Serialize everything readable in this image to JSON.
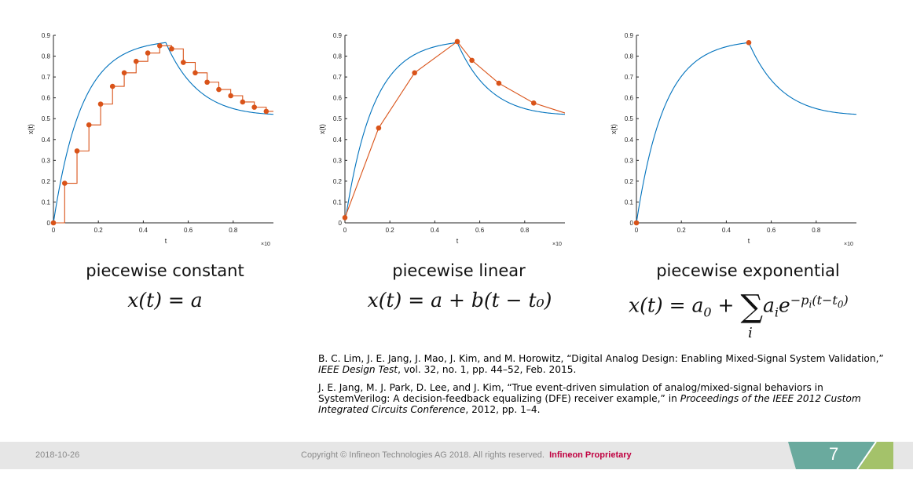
{
  "chart_data": [
    {
      "type": "line",
      "title": "",
      "xlabel": "t",
      "ylabel": "x(t)",
      "x_exponent_label": "×10",
      "x_exponent": "-6",
      "xlim": [
        0,
        1
      ],
      "ylim": [
        0,
        0.9
      ],
      "xticks": [
        "0",
        "0.2",
        "0.4",
        "0.6",
        "0.8",
        "1"
      ],
      "yticks": [
        "0",
        "0.1",
        "0.2",
        "0.3",
        "0.4",
        "0.5",
        "0.6",
        "0.7",
        "0.8",
        "0.9"
      ],
      "series": [
        {
          "kind": "smooth",
          "color": "#0072BD"
        },
        {
          "kind": "staircase",
          "color": "#D95319"
        },
        {
          "kind": "markers",
          "color": "#D95319"
        }
      ],
      "points_x": [
        0,
        0.05,
        0.105,
        0.158,
        0.21,
        0.263,
        0.315,
        0.368,
        0.42,
        0.473,
        0.526,
        0.578,
        0.631,
        0.684,
        0.736,
        0.789,
        0.842,
        0.894,
        0.947,
        1.0
      ],
      "points_y": [
        0,
        0.19,
        0.345,
        0.47,
        0.57,
        0.655,
        0.72,
        0.775,
        0.815,
        0.85,
        0.835,
        0.77,
        0.72,
        0.675,
        0.64,
        0.61,
        0.58,
        0.555,
        0.535,
        0.52
      ],
      "peak": [
        0.5,
        0.865
      ],
      "end": [
        1.0,
        0.52
      ]
    },
    {
      "type": "line",
      "title": "",
      "xlabel": "t",
      "ylabel": "x(t)",
      "x_exponent_label": "×10",
      "x_exponent": "-6",
      "xlim": [
        0,
        1
      ],
      "ylim": [
        0,
        0.9
      ],
      "xticks": [
        "0",
        "0.2",
        "0.4",
        "0.6",
        "0.8",
        "1"
      ],
      "yticks": [
        "0",
        "0.1",
        "0.2",
        "0.3",
        "0.4",
        "0.5",
        "0.6",
        "0.7",
        "0.8",
        "0.9"
      ],
      "series": [
        {
          "kind": "smooth",
          "color": "#0072BD"
        },
        {
          "kind": "polyline",
          "color": "#D95319"
        },
        {
          "kind": "markers",
          "color": "#D95319"
        }
      ],
      "points_x": [
        0,
        0.15,
        0.31,
        0.5,
        0.565,
        0.685,
        0.84,
        1.0
      ],
      "points_y": [
        0.025,
        0.455,
        0.72,
        0.87,
        0.78,
        0.67,
        0.575,
        0.52
      ],
      "peak": [
        0.5,
        0.865
      ],
      "end": [
        1.0,
        0.52
      ]
    },
    {
      "type": "line",
      "title": "",
      "xlabel": "t",
      "ylabel": "x(t)",
      "x_exponent_label": "×10",
      "x_exponent": "-6",
      "xlim": [
        0,
        1
      ],
      "ylim": [
        0,
        0.9
      ],
      "xticks": [
        "0",
        "0.2",
        "0.4",
        "0.6",
        "0.8",
        "1"
      ],
      "yticks": [
        "0",
        "0.1",
        "0.2",
        "0.3",
        "0.4",
        "0.5",
        "0.6",
        "0.7",
        "0.8",
        "0.9"
      ],
      "series": [
        {
          "kind": "smooth",
          "color": "#0072BD"
        },
        {
          "kind": "markers",
          "color": "#D95319"
        }
      ],
      "points_x": [
        0,
        0.5,
        1.0
      ],
      "points_y": [
        0,
        0.865,
        0.52
      ],
      "peak": [
        0.5,
        0.865
      ],
      "end": [
        1.0,
        0.52
      ]
    }
  ],
  "captions": {
    "constant": "piecewise constant",
    "linear": "piecewise linear",
    "exponential": "piecewise exponential"
  },
  "formulas": {
    "constant": "x(t) = a",
    "linear": "x(t) = a + b(t − t₀)",
    "exp_lhs": "x(t) = a",
    "exp_a0_sub": "0",
    "exp_plus": " + ",
    "exp_sum": "∑",
    "exp_sum_index": "i",
    "exp_term": "a",
    "exp_term_sub": "i",
    "exp_e": "e",
    "exp_power": "−p",
    "exp_power_sub": "i",
    "exp_power_rest": "(t−t",
    "exp_power_sub2": "0",
    "exp_power_close": ")"
  },
  "references": {
    "ref1_a": "B. C. Lim, J. E. Jang, J. Mao, J. Kim, and M. Horowitz, “Digital Analog Design: Enabling Mixed-Signal System Validation,” ",
    "ref1_journal": "IEEE Design Test",
    "ref1_b": ", vol. 32, no. 1, pp. 44–52, Feb. 2015.",
    "ref2_a": "J. E. Jang, M. J. Park, D. Lee, and J. Kim, “True event-driven simulation of analog/mixed-signal behaviors in SystemVerilog: A decision-feedback equalizing (DFE) receiver example,” in ",
    "ref2_venue": "Proceedings of the IEEE 2012 Custom Integrated Circuits Conference",
    "ref2_b": ", 2012, pp. 1–4."
  },
  "footer": {
    "date": "2018-10-26",
    "copyright": "Copyright © Infineon Technologies AG 2018. All rights reserved.",
    "proprietary": "Infineon Proprietary",
    "page": "7",
    "tab_color": "#6aaa9e",
    "tab_accent": "#a4c26a"
  }
}
